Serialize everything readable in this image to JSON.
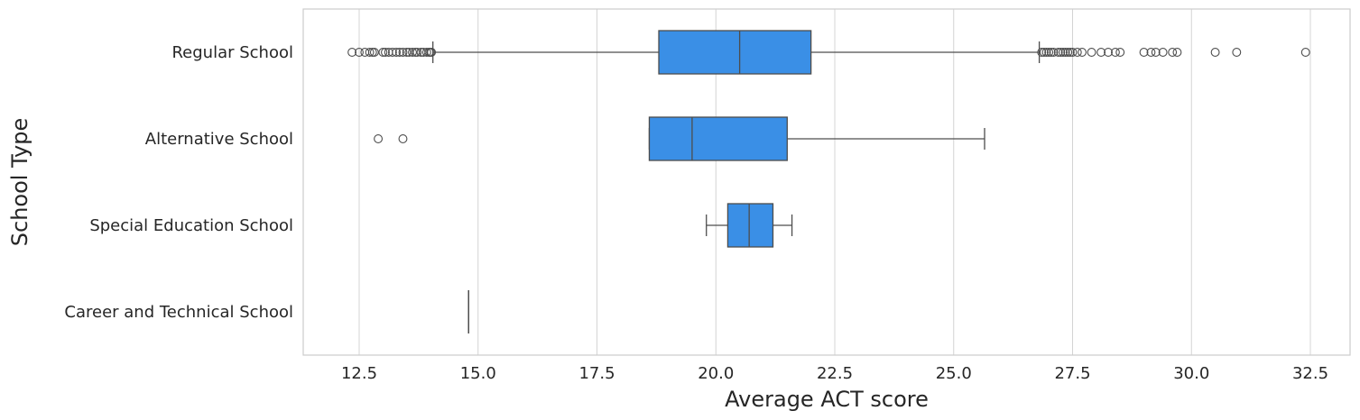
{
  "chart_data": {
    "type": "boxplot",
    "orientation": "horizontal",
    "xlabel": "Average ACT score",
    "ylabel": "School Type",
    "xlim": [
      11.5,
      33.3
    ],
    "xticks": [
      12.5,
      15.0,
      17.5,
      20.0,
      22.5,
      25.0,
      27.5,
      30.0,
      32.5
    ],
    "xtick_labels": [
      "12.5",
      "15.0",
      "17.5",
      "20.0",
      "22.5",
      "25.0",
      "27.5",
      "30.0",
      "32.5"
    ],
    "grid": "vertical",
    "box_color": "#3a8fe6",
    "line_color": "#4d4d4d",
    "categories": [
      "Regular School",
      "Alternative School",
      "Special Education School",
      "Career and Technical School"
    ],
    "boxes": [
      {
        "category": "Regular School",
        "whisker_low": 14.05,
        "q1": 18.8,
        "median": 20.5,
        "q3": 22.0,
        "whisker_high": 26.8,
        "outliers": [
          12.35,
          12.5,
          12.62,
          12.72,
          12.78,
          12.82,
          13.0,
          13.05,
          13.12,
          13.2,
          13.28,
          13.35,
          13.42,
          13.5,
          13.55,
          13.62,
          13.68,
          13.72,
          13.8,
          13.85,
          13.92,
          13.97,
          14.0,
          14.02,
          26.85,
          26.9,
          26.95,
          27.0,
          27.05,
          27.1,
          27.2,
          27.25,
          27.3,
          27.35,
          27.4,
          27.45,
          27.5,
          27.6,
          27.7,
          27.9,
          28.1,
          28.25,
          28.4,
          28.5,
          29.0,
          29.15,
          29.25,
          29.4,
          29.6,
          29.7,
          30.5,
          30.95,
          32.4
        ]
      },
      {
        "category": "Alternative School",
        "whisker_low": 18.6,
        "q1": 18.6,
        "median": 19.5,
        "q3": 21.5,
        "whisker_high": 25.65,
        "outliers": [
          12.9,
          13.42
        ]
      },
      {
        "category": "Special Education School",
        "whisker_low": 19.8,
        "q1": 20.25,
        "median": 20.7,
        "q3": 21.2,
        "whisker_high": 21.6,
        "outliers": []
      },
      {
        "category": "Career and Technical School",
        "whisker_low": 14.8,
        "q1": 14.8,
        "median": 14.8,
        "q3": 14.8,
        "whisker_high": 14.8,
        "outliers": []
      }
    ]
  }
}
